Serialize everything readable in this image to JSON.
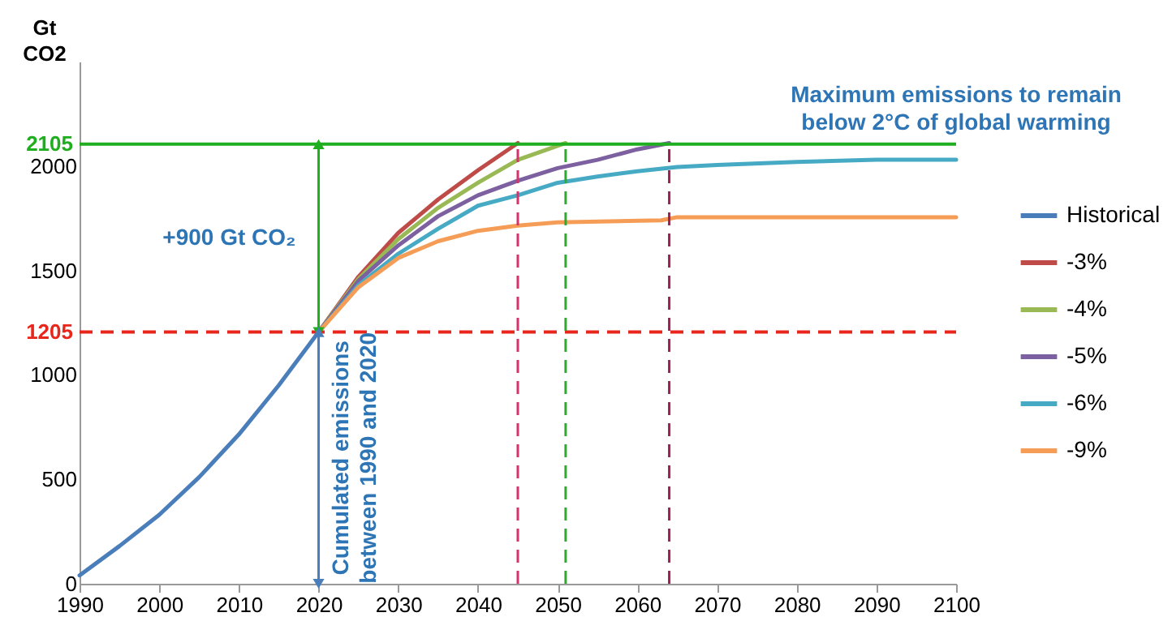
{
  "chart_data": {
    "type": "line",
    "ylabel": "Gt CO2",
    "xlim": [
      1990,
      2100
    ],
    "xticks": [
      1990,
      2000,
      2010,
      2020,
      2030,
      2040,
      2050,
      2060,
      2070,
      2080,
      2090,
      2100
    ],
    "ylim": [
      0,
      2500
    ],
    "yticks": [
      0,
      500,
      1000,
      1500,
      2000
    ],
    "grid": false,
    "legend": "right",
    "line_style": "solid",
    "marker": "none",
    "series": [
      {
        "name": "Historical",
        "color": "#4a7ebb",
        "x": [
          1990,
          1995,
          2000,
          2005,
          2010,
          2015,
          2020
        ],
        "values": [
          40,
          180,
          330,
          510,
          715,
          950,
          1205
        ]
      },
      {
        "name": "-3%",
        "color": "#be4b48",
        "x": [
          2020,
          2025,
          2030,
          2035,
          2040,
          2045
        ],
        "values": [
          1205,
          1470,
          1680,
          1840,
          1980,
          2110
        ]
      },
      {
        "name": "-4%",
        "color": "#98b954",
        "x": [
          2020,
          2025,
          2030,
          2035,
          2040,
          2045,
          2051
        ],
        "values": [
          1205,
          1460,
          1650,
          1800,
          1920,
          2030,
          2110
        ]
      },
      {
        "name": "-5%",
        "color": "#7d60a0",
        "x": [
          2020,
          2025,
          2030,
          2035,
          2040,
          2045,
          2050,
          2055,
          2060,
          2064
        ],
        "values": [
          1205,
          1450,
          1620,
          1760,
          1860,
          1930,
          1990,
          2030,
          2080,
          2110
        ]
      },
      {
        "name": "-6%",
        "color": "#46aac5",
        "x": [
          2020,
          2025,
          2030,
          2035,
          2040,
          2045,
          2050,
          2055,
          2060,
          2065,
          2070,
          2080,
          2090,
          2100
        ],
        "values": [
          1205,
          1430,
          1580,
          1700,
          1810,
          1860,
          1920,
          1950,
          1975,
          1995,
          2005,
          2020,
          2030,
          2030
        ]
      },
      {
        "name": "-9%",
        "color": "#f59d56",
        "x": [
          2020,
          2025,
          2030,
          2035,
          2040,
          2045,
          2050,
          2063,
          2065,
          2100
        ],
        "values": [
          1205,
          1420,
          1560,
          1640,
          1690,
          1715,
          1730,
          1740,
          1755,
          1755
        ]
      }
    ],
    "ref_lines": [
      {
        "axis": "y",
        "value": 2105,
        "label": "2105",
        "color": "#1fae1f",
        "line_style": "solid"
      },
      {
        "axis": "y",
        "value": 1205,
        "label": "1205",
        "color": "#e8261b",
        "line_style": "dashed"
      },
      {
        "axis": "x",
        "value": 2045,
        "color": "#d6336c",
        "line_style": "dashed"
      },
      {
        "axis": "x",
        "value": 2051,
        "color": "#2eaa2e",
        "line_style": "dashed"
      },
      {
        "axis": "x",
        "value": 2064,
        "color": "#a0205a",
        "line_style": "dashed"
      }
    ],
    "annotations": [
      "Maximum emissions to remain below 2°C of global warming",
      "+900 Gt CO₂",
      {
        "text": "Cumulated emissions between 1990 and 2020",
        "x": 2020,
        "y": 1205
      }
    ]
  }
}
